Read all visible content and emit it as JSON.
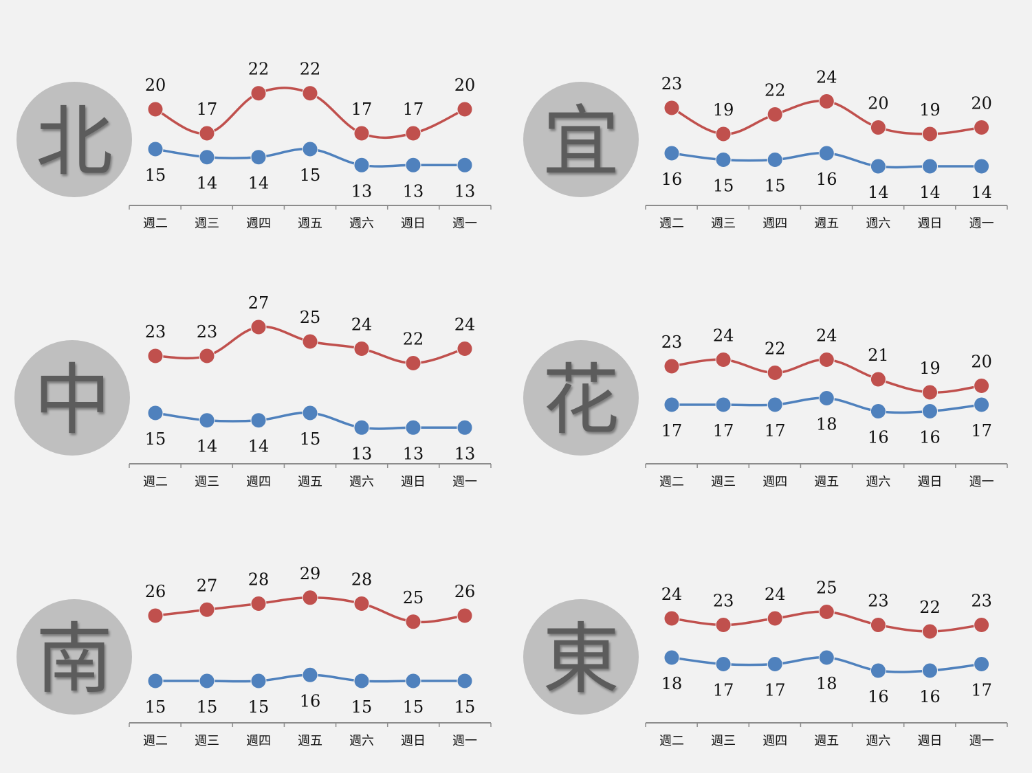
{
  "chart_data": [
    {
      "type": "line",
      "region": "北",
      "categories": [
        "週二",
        "週三",
        "週四",
        "週五",
        "週六",
        "週日",
        "週一"
      ],
      "series": [
        {
          "values": [
            20,
            17,
            22,
            22,
            17,
            17,
            20
          ],
          "color": "#c0504d"
        },
        {
          "values": [
            15,
            14,
            14,
            15,
            13,
            13,
            13
          ],
          "color": "#4f81bd"
        }
      ]
    },
    {
      "type": "line",
      "region": "宜",
      "categories": [
        "週二",
        "週三",
        "週四",
        "週五",
        "週六",
        "週日",
        "週一"
      ],
      "series": [
        {
          "values": [
            23,
            19,
            22,
            24,
            20,
            19,
            20
          ],
          "color": "#c0504d"
        },
        {
          "values": [
            16,
            15,
            15,
            16,
            14,
            14,
            14
          ],
          "color": "#4f81bd"
        }
      ]
    },
    {
      "type": "line",
      "region": "中",
      "categories": [
        "週二",
        "週三",
        "週四",
        "週五",
        "週六",
        "週日",
        "週一"
      ],
      "series": [
        {
          "values": [
            23,
            23,
            27,
            25,
            24,
            22,
            24
          ],
          "color": "#c0504d"
        },
        {
          "values": [
            15,
            14,
            14,
            15,
            13,
            13,
            13
          ],
          "color": "#4f81bd"
        }
      ]
    },
    {
      "type": "line",
      "region": "花",
      "categories": [
        "週二",
        "週三",
        "週四",
        "週五",
        "週六",
        "週日",
        "週一"
      ],
      "series": [
        {
          "values": [
            23,
            24,
            22,
            24,
            21,
            19,
            20
          ],
          "color": "#c0504d"
        },
        {
          "values": [
            17,
            17,
            17,
            18,
            16,
            16,
            17
          ],
          "color": "#4f81bd"
        }
      ]
    },
    {
      "type": "line",
      "region": "南",
      "categories": [
        "週二",
        "週三",
        "週四",
        "週五",
        "週六",
        "週日",
        "週一"
      ],
      "series": [
        {
          "values": [
            26,
            27,
            28,
            29,
            28,
            25,
            26
          ],
          "color": "#c0504d"
        },
        {
          "values": [
            15,
            15,
            15,
            16,
            15,
            15,
            15
          ],
          "color": "#4f81bd"
        }
      ]
    },
    {
      "type": "line",
      "region": "東",
      "categories": [
        "週二",
        "週三",
        "週四",
        "週五",
        "週六",
        "週日",
        "週一"
      ],
      "series": [
        {
          "values": [
            24,
            23,
            24,
            25,
            23,
            22,
            23
          ],
          "color": "#c0504d"
        },
        {
          "values": [
            18,
            17,
            17,
            18,
            16,
            16,
            17
          ],
          "color": "#4f81bd"
        }
      ]
    }
  ]
}
